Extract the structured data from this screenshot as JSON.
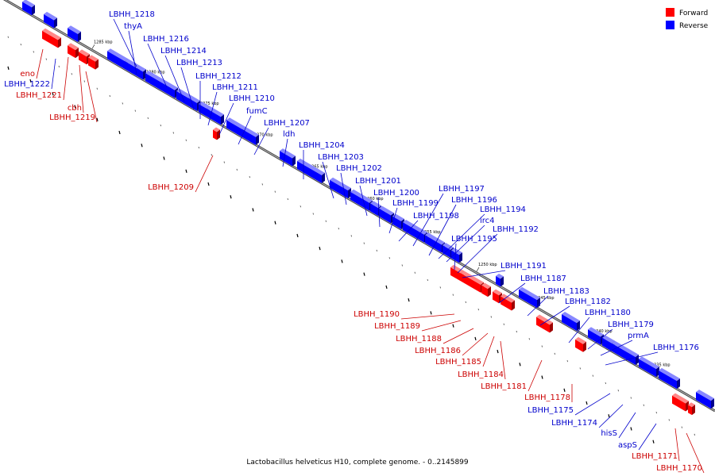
{
  "caption": "Lactobacillus helveticus H10, complete genome. - 0..2145899",
  "legend": [
    {
      "label": "Forward",
      "color": "#ff0000"
    },
    {
      "label": "Reverse",
      "color": "#0000ff"
    }
  ],
  "colors": {
    "forward": "#ff0000",
    "reverse": "#0000ff",
    "forward_label": "#cc0000",
    "reverse_label": "#0000cc",
    "axis": "#888888"
  },
  "kbp_ticks": [
    "1285 kbp",
    "1280 kbp",
    "1275 kbp",
    "1270 kbp",
    "1265 kbp",
    "1260 kbp",
    "1255 kbp",
    "1250 kbp",
    "1245 kbp",
    "1240 kbp",
    "1235 kbp"
  ],
  "forward_genes": [
    "eno",
    "LBHH_1221",
    "cbh",
    "LBHH_1219",
    "LBHH_1209",
    "LBHH_1190",
    "LBHH_1189",
    "LBHH_1188",
    "LBHH_1186",
    "LBHH_1185",
    "LBHH_1184",
    "LBHH_1181",
    "LBHH_1178",
    "LBHH_1171",
    "LBHH_1170"
  ],
  "reverse_genes": [
    "LBHH_1222",
    "LBHH_1218",
    "thyA",
    "LBHH_1216",
    "LBHH_1214",
    "LBHH_1213",
    "LBHH_1212",
    "LBHH_1211",
    "LBHH_1210",
    "fumC",
    "LBHH_1207",
    "ldh",
    "LBHH_1204",
    "LBHH_1203",
    "LBHH_1202",
    "LBHH_1201",
    "LBHH_1200",
    "LBHH_1199",
    "LBHH_1198",
    "LBHH_1197",
    "LBHH_1196",
    "irc4",
    "LBHH_1194",
    "LBHH_1195",
    "LBHH_1192",
    "LBHH_1191",
    "LBHH_1187",
    "LBHH_1183",
    "LBHH_1182",
    "LBHH_1180",
    "LBHH_1179",
    "prmA",
    "LBHH_1176",
    "LBHH_1175",
    "LBHH_1174",
    "hisS",
    "aspS"
  ]
}
